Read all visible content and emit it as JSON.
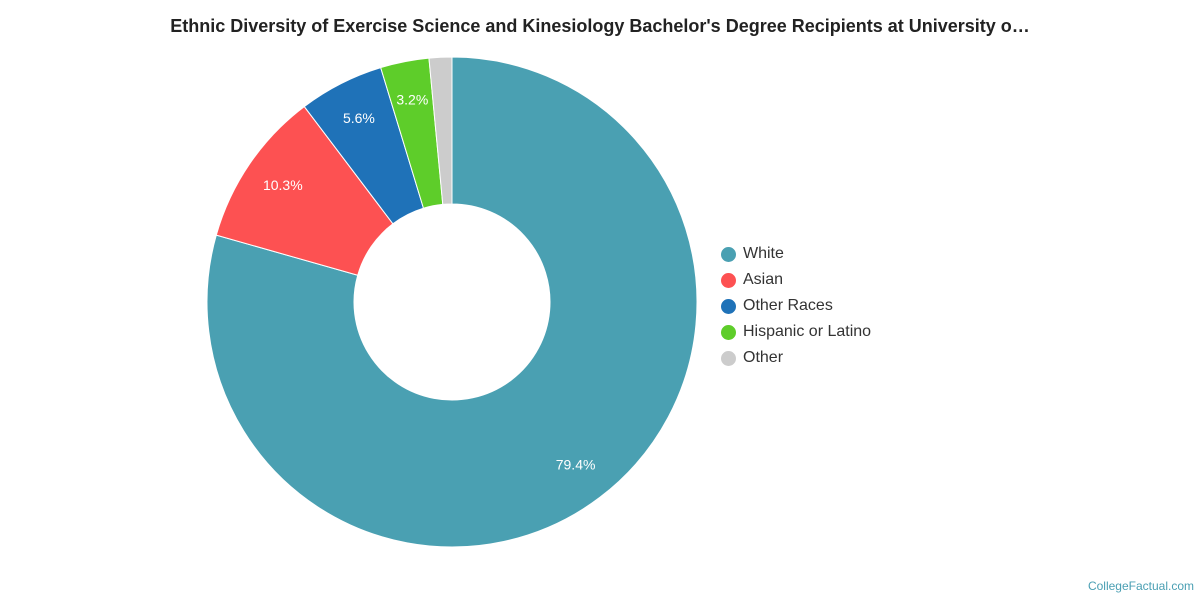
{
  "chart_data": {
    "type": "pie",
    "title": "Ethnic Diversity of Exercise Science and Kinesiology Bachelor's Degree Recipients at University o…",
    "slices": [
      {
        "label": "White",
        "value": 79.4,
        "display": "79.4%",
        "color": "#4aa0b2"
      },
      {
        "label": "Asian",
        "value": 10.3,
        "display": "10.3%",
        "color": "#fd5152"
      },
      {
        "label": "Other Races",
        "value": 5.6,
        "display": "5.6%",
        "color": "#1f72b8"
      },
      {
        "label": "Hispanic or Latino",
        "value": 3.2,
        "display": "3.2%",
        "color": "#5ecd2a"
      },
      {
        "label": "Other",
        "value": 1.5,
        "display": "",
        "color": "#cccccc"
      }
    ],
    "donut": true,
    "legend_position": "right"
  },
  "credit": "CollegeFactual.com"
}
